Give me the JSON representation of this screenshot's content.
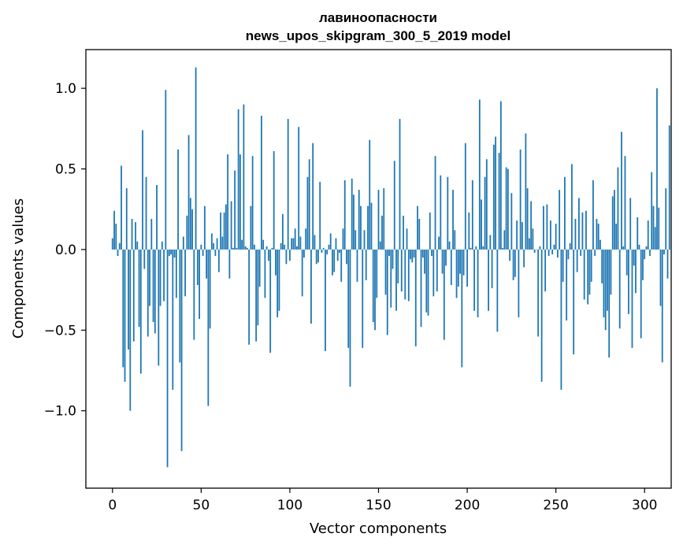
{
  "chart_data": {
    "type": "bar",
    "title": "лавиноопасности",
    "subtitle": "news_upos_skipgram_300_5_2019 model",
    "xlabel": "Vector components",
    "ylabel": "Components values",
    "xlim": [
      -15,
      315
    ],
    "ylim": [
      -1.48,
      1.24
    ],
    "xticks": [
      0,
      50,
      100,
      150,
      200,
      250,
      300
    ],
    "yticks": [
      1.0,
      0.5,
      0.0,
      -0.5,
      -1.0
    ],
    "ytick_labels": [
      "1.0",
      "0.5",
      "0.0",
      "−0.5",
      "−1.0"
    ],
    "grid": false,
    "bar_color": "#1f77b4",
    "values": [
      0.07,
      0.24,
      0.16,
      -0.04,
      0.04,
      0.52,
      -0.73,
      -0.82,
      0.38,
      -0.62,
      -1.0,
      0.19,
      -0.57,
      0.17,
      0.05,
      -0.48,
      -0.77,
      0.74,
      -0.12,
      0.45,
      -0.54,
      -0.35,
      0.19,
      -0.45,
      -0.52,
      0.4,
      -0.72,
      -0.35,
      0.05,
      -0.32,
      0.99,
      -1.35,
      -0.04,
      -0.03,
      -0.87,
      -0.05,
      -0.3,
      0.62,
      -0.7,
      -1.25,
      0.08,
      -0.29,
      0.21,
      0.71,
      0.32,
      0.25,
      -0.56,
      1.13,
      -0.22,
      -0.43,
      0.03,
      -0.04,
      0.27,
      -0.18,
      -0.97,
      -0.49,
      0.1,
      0.04,
      -0.04,
      0.07,
      -0.14,
      0.23,
      0.08,
      0.23,
      0.28,
      0.59,
      -0.18,
      0.3,
      0.01,
      0.49,
      0.01,
      0.87,
      0.59,
      0.06,
      0.9,
      0.02,
      0.01,
      -0.59,
      0.27,
      0.58,
      0.03,
      -0.57,
      -0.47,
      -0.23,
      0.83,
      0.06,
      -0.3,
      0.02,
      -0.07,
      -0.64,
      0.01,
      0.61,
      -0.16,
      -0.42,
      -0.38,
      0.04,
      0.22,
      0.03,
      -0.09,
      0.81,
      -0.07,
      0.07,
      0.07,
      0.13,
      0.02,
      0.76,
      0.08,
      -0.29,
      -0.05,
      0.13,
      0.45,
      0.56,
      -0.46,
      0.66,
      0.09,
      -0.09,
      -0.08,
      0.42,
      -0.02,
      0.01,
      -0.63,
      -0.03,
      0.03,
      0.1,
      -0.16,
      -0.14,
      0.07,
      -0.07,
      -0.02,
      -0.2,
      0.13,
      0.43,
      -0.09,
      -0.61,
      -0.85,
      0.44,
      0.34,
      0.12,
      -0.2,
      0.37,
      0.27,
      -0.61,
      0.12,
      -0.19,
      0.27,
      0.68,
      0.29,
      -0.45,
      -0.5,
      -0.3,
      0.37,
      0.05,
      0.21,
      0.38,
      -0.28,
      -0.53,
      -0.04,
      -0.36,
      -0.12,
      0.55,
      -0.38,
      -0.21,
      0.81,
      -0.26,
      0.21,
      -0.31,
      0.13,
      -0.32,
      -0.06,
      -0.08,
      -0.05,
      -0.6,
      0.27,
      0.19,
      -0.48,
      -0.05,
      -0.15,
      -0.39,
      -0.41,
      0.23,
      -0.04,
      -0.29,
      0.58,
      -0.26,
      0.08,
      0.46,
      -0.15,
      -0.56,
      -0.1,
      0.45,
      0.05,
      -0.22,
      0.37,
      0.12,
      -0.3,
      -0.23,
      -0.15,
      -0.73,
      -0.16,
      0.66,
      -0.23,
      0.23,
      0.01,
      0.43,
      -0.38,
      0.02,
      -0.42,
      0.93,
      0.31,
      0.02,
      0.45,
      0.56,
      -0.38,
      0.09,
      -0.24,
      0.65,
      0.7,
      -0.51,
      0.6,
      0.92,
      0.01,
      0.12,
      0.51,
      0.5,
      -0.07,
      0.35,
      -0.19,
      -0.17,
      0.18,
      -0.42,
      0.62,
      0.17,
      -0.11,
      0.72,
      0.38,
      0.07,
      0.3,
      0.13,
      -0.02,
      0.0,
      -0.54,
      0.02,
      -0.82,
      0.27,
      -0.26,
      0.28,
      -0.04,
      0.18,
      -0.03,
      0.03,
      0.16,
      -0.05,
      0.37,
      -0.87,
      -0.2,
      0.45,
      -0.44,
      -0.06,
      0.04,
      0.53,
      -0.65,
      0.19,
      -0.14,
      0.32,
      -0.04,
      0.23,
      -0.31,
      0.24,
      -0.34,
      -0.28,
      -0.2,
      0.43,
      -0.04,
      0.19,
      0.16,
      0.06,
      -0.21,
      -0.42,
      -0.5,
      -0.38,
      -0.67,
      -0.28,
      0.33,
      0.37,
      0.16,
      0.51,
      -0.49,
      0.73,
      0.02,
      0.58,
      -0.16,
      -0.4,
      0.32,
      -0.61,
      -0.1,
      -0.27,
      0.2,
      0.03,
      -0.55,
      -0.19,
      -0.06,
      0.02,
      0.18,
      -0.04,
      0.48,
      0.27,
      0.14,
      1.0,
      0.26,
      -0.35,
      -0.7,
      -0.03,
      0.38,
      -0.18,
      0.77
    ]
  }
}
